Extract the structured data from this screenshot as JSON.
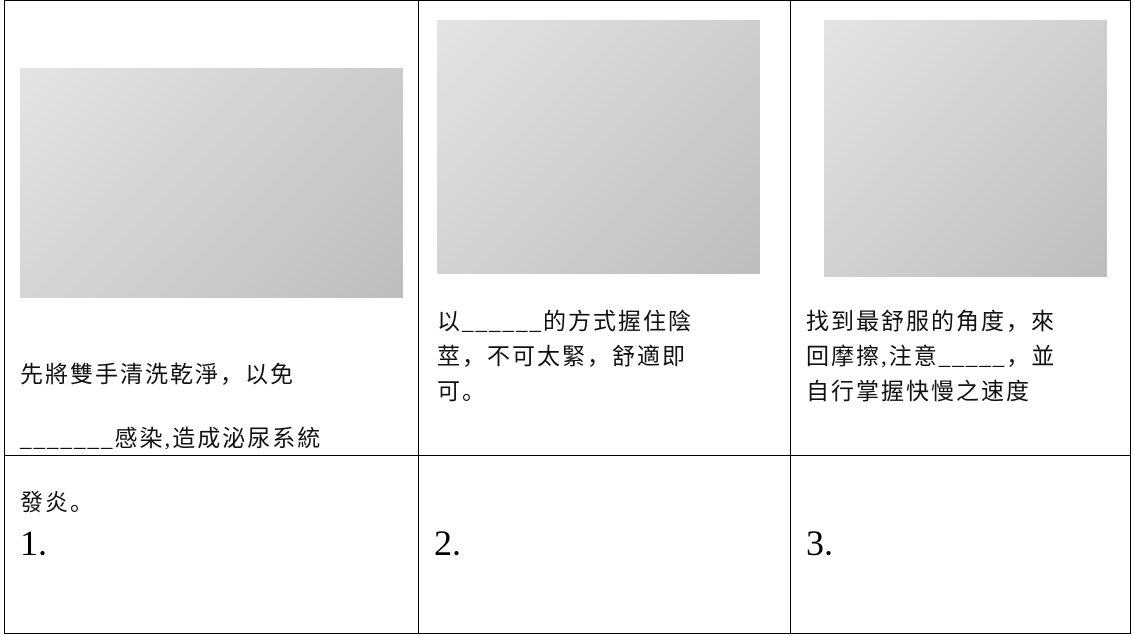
{
  "table": {
    "rows": [
      [
        {
          "text": [
            "先將雙手清洗乾淨，以免",
            "_______感染,造成泌尿系統",
            "發炎。"
          ]
        },
        {
          "text": [
            "以______的方式握住陰",
            "莖，不可太緊，舒適即",
            "可。"
          ]
        },
        {
          "text": [
            "找到最舒服的角度，來",
            "回摩擦,注意_____，並",
            "自行掌握快慢之速度"
          ]
        }
      ],
      [
        "1.",
        "2.",
        "3."
      ]
    ]
  }
}
